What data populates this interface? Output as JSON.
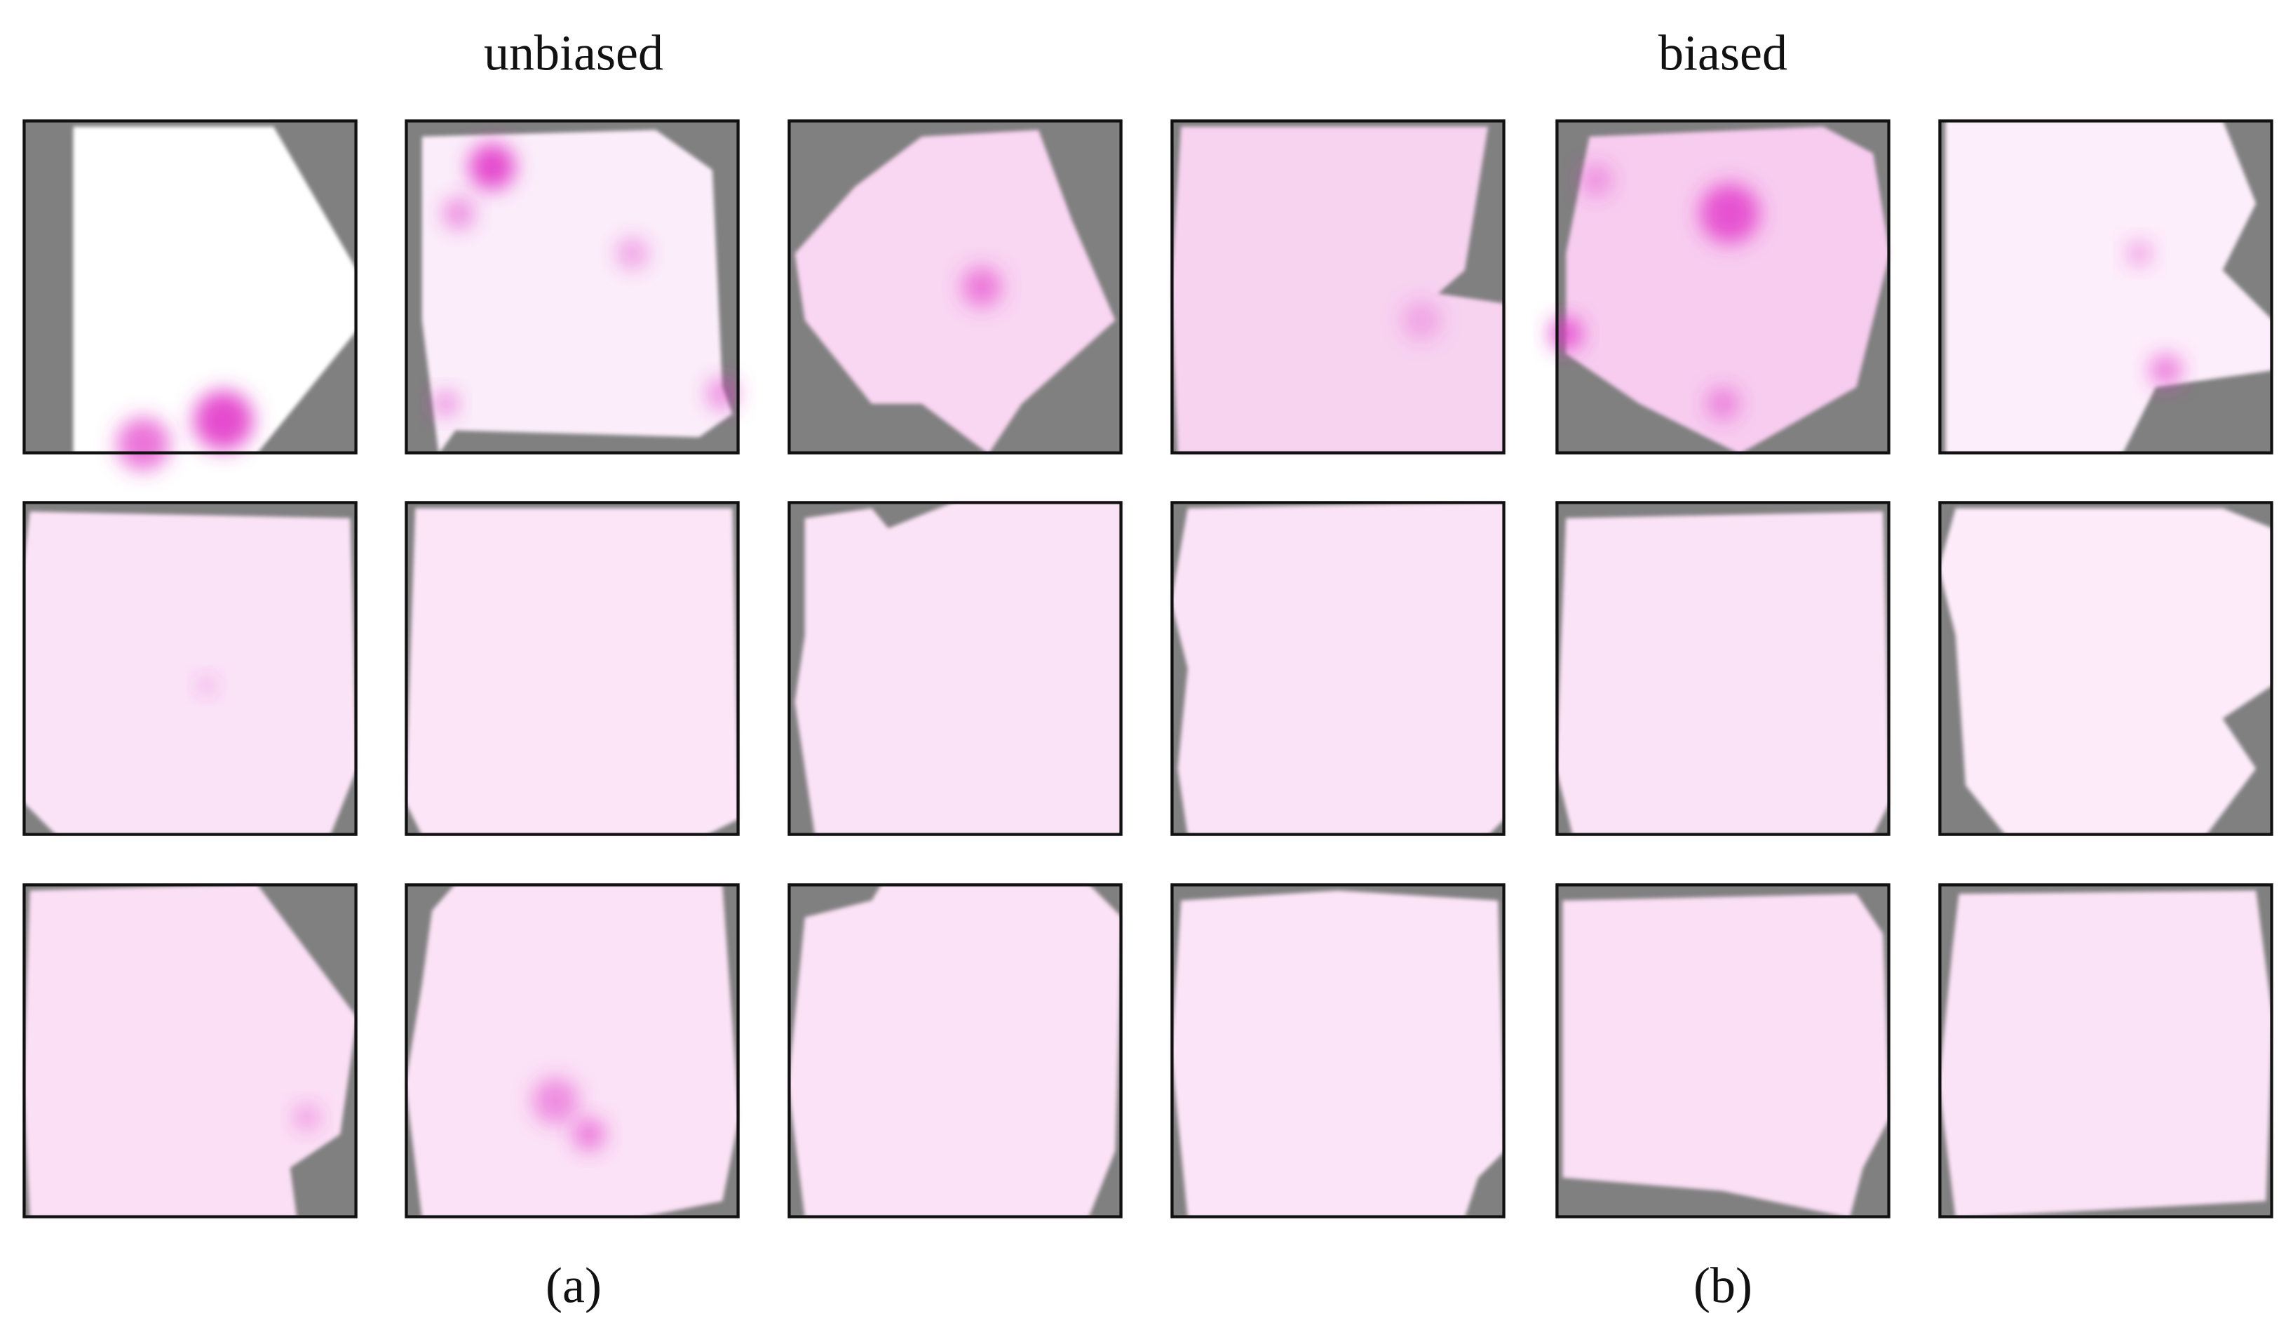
{
  "panels": [
    {
      "title": "unbiased",
      "label": "(a)"
    },
    {
      "title": "biased",
      "label": "(b)"
    }
  ]
}
